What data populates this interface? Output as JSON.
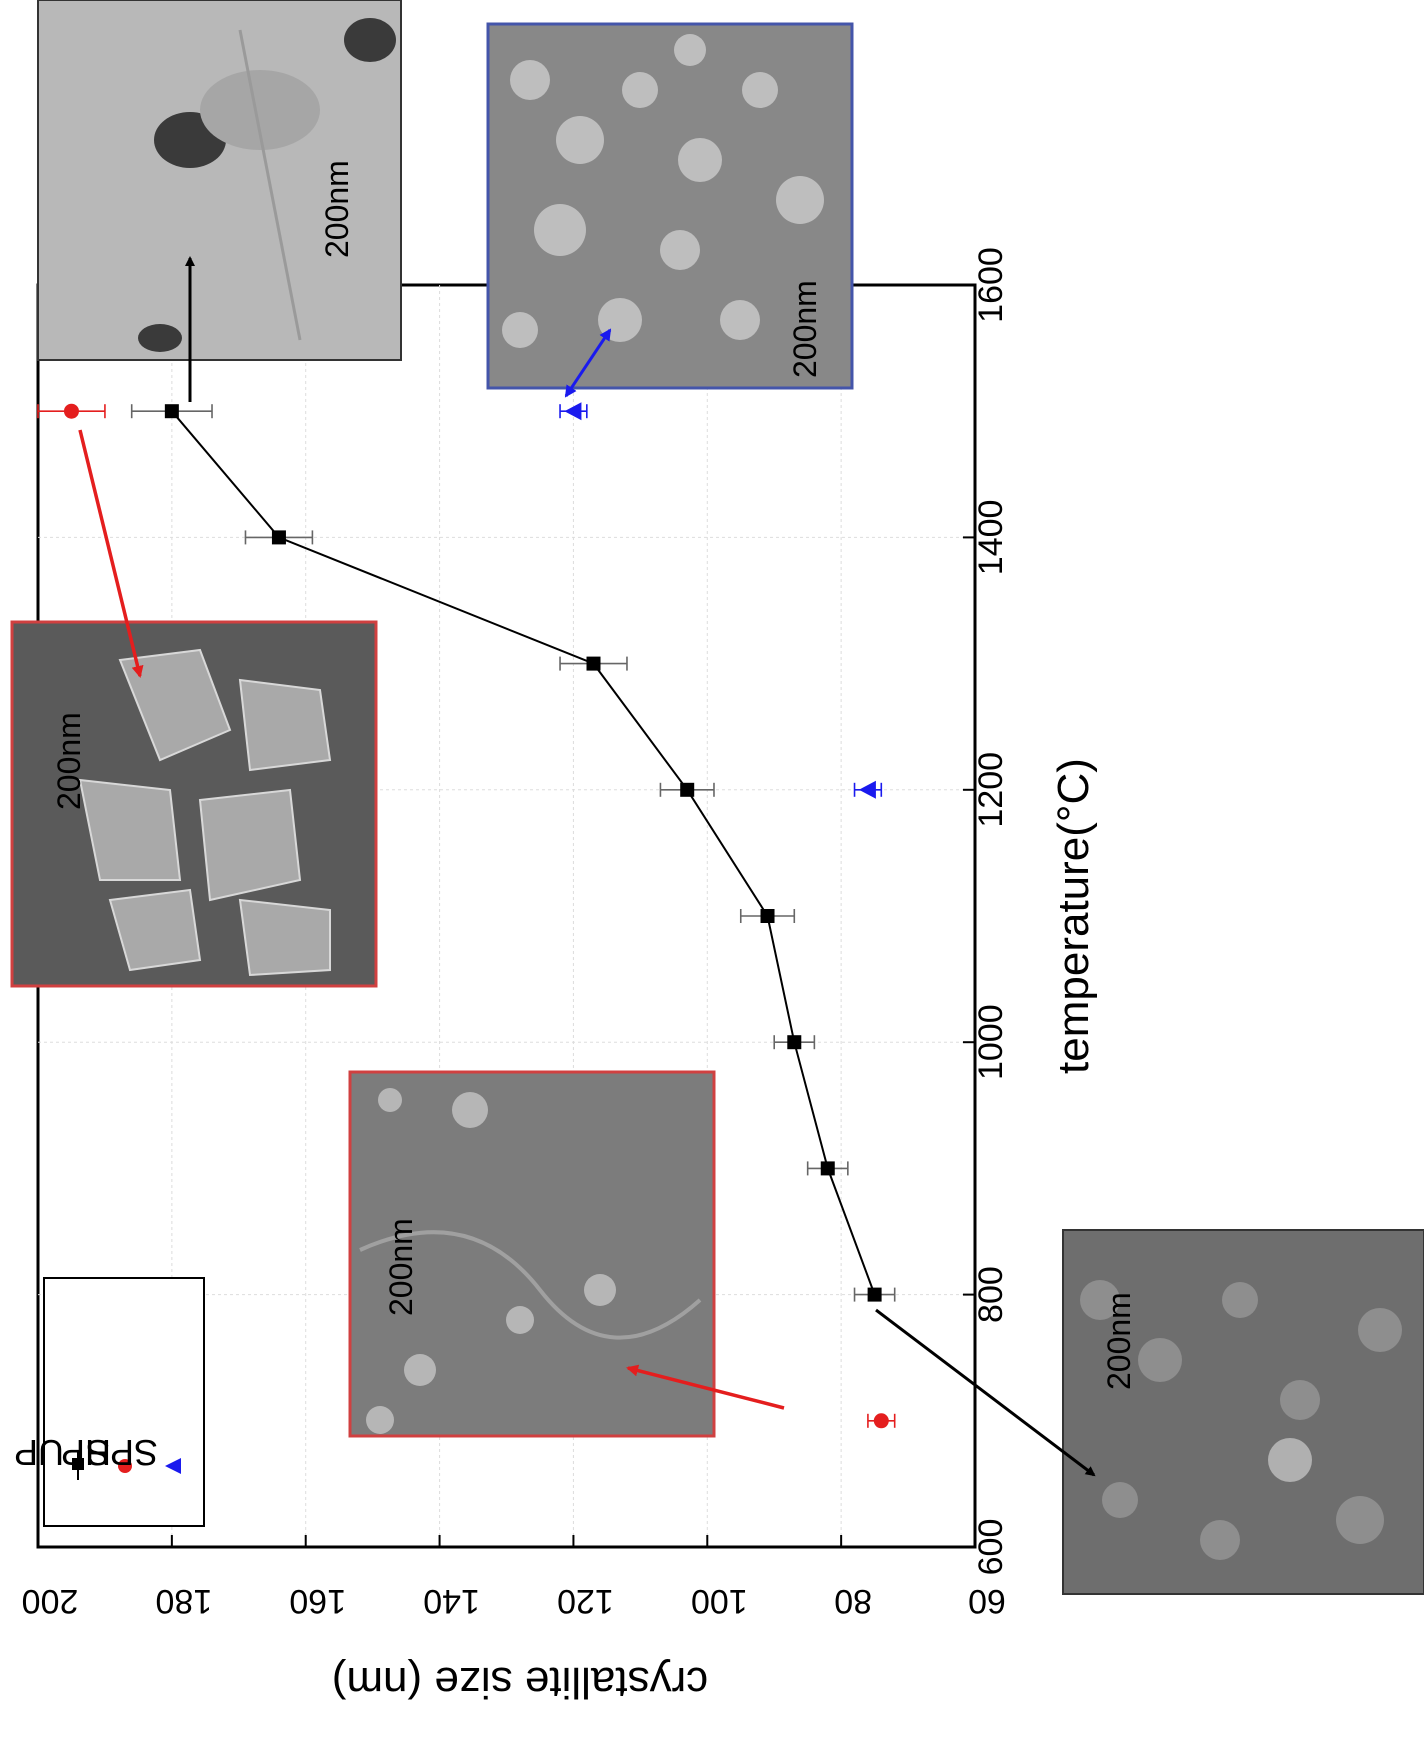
{
  "chart_data": {
    "type": "scatter",
    "xlabel": "temperature(°C)",
    "ylabel": "crystallite size (nm)",
    "xlim": [
      600,
      1600
    ],
    "ylim": [
      60,
      200
    ],
    "x_ticks": [
      "600",
      "800",
      "1000",
      "1200",
      "1400",
      "1600"
    ],
    "y_ticks": [
      "60",
      "80",
      "100",
      "120",
      "140",
      "160",
      "180",
      "200"
    ],
    "grid": true,
    "orientation": "rotated-180",
    "legend_position": "bottom-left",
    "series": [
      {
        "name": "UP",
        "marker": "square",
        "line": true,
        "color": "#000000",
        "x": [
          800,
          900,
          1000,
          1100,
          1200,
          1300,
          1400,
          1500
        ],
        "y": [
          75,
          82,
          87,
          91,
          103,
          117,
          164,
          180
        ],
        "err": [
          3,
          3,
          3,
          4,
          4,
          5,
          5,
          6
        ]
      },
      {
        "name": "HP",
        "marker": "circle",
        "line": false,
        "color": "#e41e1e",
        "x": [
          700,
          1500
        ],
        "y": [
          74,
          195
        ],
        "err": [
          2,
          5
        ]
      },
      {
        "name": "SPS",
        "marker": "triangle",
        "line": false,
        "color": "#1a1aee",
        "x": [
          1200,
          1500
        ],
        "y": [
          76,
          120
        ],
        "err": [
          2,
          2
        ]
      }
    ]
  },
  "insets": [
    {
      "scale_label": "200nm",
      "border": "#333333"
    },
    {
      "scale_label": "200nm",
      "border": "#d04040"
    },
    {
      "scale_label": "200nm",
      "border": "#d04040"
    },
    {
      "scale_label": "200nm",
      "border": "#4455aa"
    },
    {
      "scale_label": "200nm",
      "border": "#333333"
    }
  ]
}
